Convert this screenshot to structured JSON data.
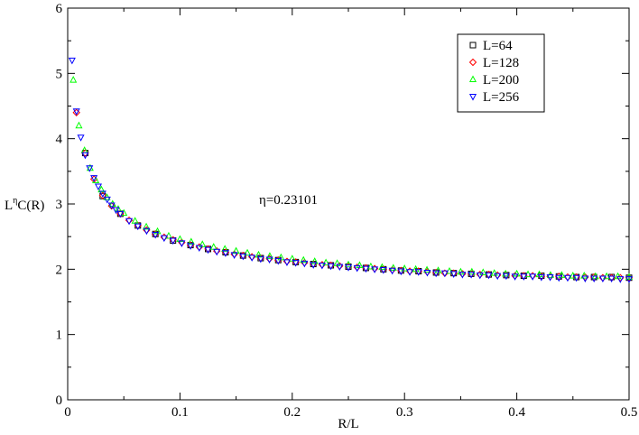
{
  "chart_data": {
    "type": "scatter",
    "xlabel": "R/L",
    "ylabel": {
      "base": "L",
      "sup": "η",
      "rest": "C(R)"
    },
    "annotation": "η=0.23101",
    "xlim": [
      0,
      0.5
    ],
    "ylim": [
      0,
      6
    ],
    "x_ticks": [
      "0",
      "0.1",
      "0.2",
      "0.3",
      "0.4",
      "0.5"
    ],
    "y_ticks": [
      "0",
      "1",
      "2",
      "3",
      "4",
      "5",
      "6"
    ],
    "x_tick_values": [
      0,
      0.1,
      0.2,
      0.3,
      0.4,
      0.5
    ],
    "y_tick_values": [
      0,
      1,
      2,
      3,
      4,
      5,
      6
    ],
    "grid": false,
    "legend_position": "top-right",
    "series": [
      {
        "name": "L=64",
        "marker": "square",
        "color": "#000000",
        "x": [
          0.0156,
          0.0312,
          0.0469,
          0.0625,
          0.0781,
          0.0938,
          0.1094,
          0.125,
          0.1406,
          0.1562,
          0.1719,
          0.1875,
          0.2031,
          0.2188,
          0.2344,
          0.25,
          0.2656,
          0.2812,
          0.2969,
          0.3125,
          0.3281,
          0.3438,
          0.3594,
          0.375,
          0.3906,
          0.4062,
          0.4219,
          0.4375,
          0.4531,
          0.4688,
          0.4844,
          0.5
        ],
        "y": [
          3.78,
          3.12,
          2.85,
          2.67,
          2.54,
          2.44,
          2.37,
          2.31,
          2.26,
          2.21,
          2.17,
          2.14,
          2.11,
          2.08,
          2.06,
          2.04,
          2.02,
          2.0,
          1.98,
          1.97,
          1.95,
          1.94,
          1.93,
          1.92,
          1.91,
          1.9,
          1.9,
          1.89,
          1.88,
          1.88,
          1.88,
          1.87
        ]
      },
      {
        "name": "L=128",
        "marker": "diamond",
        "color": "#ff0000",
        "x": [
          0.0078,
          0.0156,
          0.0234,
          0.0312,
          0.0391,
          0.0469,
          0.0547,
          0.0625,
          0.0703,
          0.0781,
          0.0859,
          0.0938,
          0.1016,
          0.1094,
          0.1172,
          0.125,
          0.1328,
          0.1406,
          0.1484,
          0.1562,
          0.1641,
          0.1719,
          0.1797,
          0.1875,
          0.1953,
          0.2031,
          0.2109,
          0.2188,
          0.2266,
          0.2344,
          0.2422,
          0.25,
          0.2578,
          0.2656,
          0.2734,
          0.2812,
          0.2891,
          0.2969,
          0.3047,
          0.3125,
          0.3203,
          0.3281,
          0.3359,
          0.3438,
          0.3516,
          0.3594,
          0.3672,
          0.375,
          0.3828,
          0.3906,
          0.3984,
          0.4062,
          0.4141,
          0.4219,
          0.4297,
          0.4375,
          0.4453,
          0.4531,
          0.4609,
          0.4688,
          0.4766,
          0.4844,
          0.4922,
          0.5
        ],
        "y": [
          4.4,
          3.78,
          3.38,
          3.13,
          2.97,
          2.85,
          2.75,
          2.67,
          2.6,
          2.54,
          2.49,
          2.45,
          2.41,
          2.37,
          2.34,
          2.31,
          2.28,
          2.26,
          2.23,
          2.21,
          2.19,
          2.17,
          2.16,
          2.14,
          2.12,
          2.11,
          2.1,
          2.08,
          2.07,
          2.06,
          2.05,
          2.04,
          2.03,
          2.02,
          2.01,
          2.0,
          1.99,
          1.98,
          1.97,
          1.97,
          1.96,
          1.95,
          1.94,
          1.94,
          1.93,
          1.93,
          1.92,
          1.92,
          1.91,
          1.91,
          1.9,
          1.9,
          1.9,
          1.89,
          1.89,
          1.89,
          1.88,
          1.88,
          1.88,
          1.88,
          1.87,
          1.87,
          1.87,
          1.87
        ]
      },
      {
        "name": "L=200",
        "marker": "triangle-up",
        "color": "#00ff00",
        "x": [
          0.005,
          0.01,
          0.015,
          0.02,
          0.025,
          0.03,
          0.035,
          0.04,
          0.045,
          0.05,
          0.06,
          0.07,
          0.08,
          0.09,
          0.1,
          0.11,
          0.12,
          0.13,
          0.14,
          0.15,
          0.16,
          0.17,
          0.18,
          0.19,
          0.2,
          0.21,
          0.22,
          0.23,
          0.24,
          0.25,
          0.26,
          0.27,
          0.28,
          0.29,
          0.3,
          0.31,
          0.32,
          0.33,
          0.34,
          0.35,
          0.36,
          0.37,
          0.38,
          0.39,
          0.4,
          0.41,
          0.42,
          0.43,
          0.44,
          0.45,
          0.46,
          0.47,
          0.48,
          0.49,
          0.5
        ],
        "y": [
          4.9,
          4.2,
          3.82,
          3.55,
          3.36,
          3.22,
          3.1,
          3.0,
          2.92,
          2.86,
          2.74,
          2.65,
          2.58,
          2.51,
          2.46,
          2.42,
          2.38,
          2.34,
          2.31,
          2.28,
          2.25,
          2.22,
          2.2,
          2.18,
          2.16,
          2.14,
          2.12,
          2.1,
          2.09,
          2.07,
          2.06,
          2.04,
          2.03,
          2.02,
          2.01,
          2.0,
          1.99,
          1.98,
          1.97,
          1.96,
          1.96,
          1.95,
          1.94,
          1.93,
          1.93,
          1.92,
          1.92,
          1.91,
          1.91,
          1.9,
          1.9,
          1.89,
          1.89,
          1.89,
          1.88
        ]
      },
      {
        "name": "L=256",
        "marker": "triangle-down",
        "color": "#0000ff",
        "x": [
          0.0039,
          0.0078,
          0.0117,
          0.0156,
          0.0195,
          0.0234,
          0.0273,
          0.0312,
          0.0352,
          0.0391,
          0.043,
          0.0469,
          0.0547,
          0.0625,
          0.0703,
          0.0781,
          0.0859,
          0.0938,
          0.1016,
          0.1094,
          0.1172,
          0.125,
          0.1328,
          0.1406,
          0.1484,
          0.1562,
          0.1641,
          0.1719,
          0.1797,
          0.1875,
          0.1953,
          0.2031,
          0.2109,
          0.2188,
          0.2266,
          0.2344,
          0.2422,
          0.25,
          0.2578,
          0.2656,
          0.2734,
          0.2812,
          0.2891,
          0.2969,
          0.3047,
          0.3125,
          0.3203,
          0.3281,
          0.3359,
          0.3438,
          0.3516,
          0.3594,
          0.3672,
          0.375,
          0.3828,
          0.3906,
          0.3984,
          0.4062,
          0.4141,
          0.4219,
          0.4297,
          0.4375,
          0.4453,
          0.4531,
          0.4609,
          0.4688,
          0.4766,
          0.4844,
          0.4922,
          0.5
        ],
        "y": [
          5.2,
          4.42,
          4.02,
          3.75,
          3.55,
          3.4,
          3.27,
          3.16,
          3.07,
          2.98,
          2.91,
          2.85,
          2.74,
          2.66,
          2.59,
          2.53,
          2.48,
          2.44,
          2.4,
          2.36,
          2.33,
          2.3,
          2.27,
          2.25,
          2.22,
          2.2,
          2.18,
          2.16,
          2.15,
          2.13,
          2.11,
          2.1,
          2.09,
          2.07,
          2.06,
          2.05,
          2.04,
          2.03,
          2.02,
          2.01,
          2.0,
          1.99,
          1.98,
          1.97,
          1.96,
          1.96,
          1.95,
          1.94,
          1.94,
          1.93,
          1.92,
          1.92,
          1.91,
          1.91,
          1.9,
          1.9,
          1.89,
          1.89,
          1.89,
          1.88,
          1.88,
          1.87,
          1.87,
          1.87,
          1.86,
          1.86,
          1.86,
          1.86,
          1.85,
          1.85
        ]
      }
    ]
  }
}
